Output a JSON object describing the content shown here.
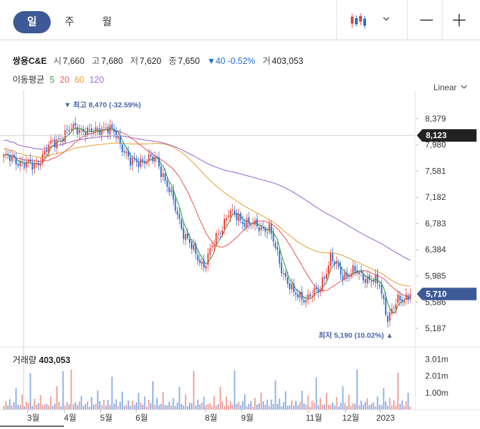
{
  "tabs": [
    {
      "label": "일",
      "active": true
    },
    {
      "label": "주",
      "active": false
    },
    {
      "label": "월",
      "active": false
    }
  ],
  "toolbar": {
    "chart_type_icon": "candlestick-icon",
    "dropdown_icon": "chevron-down-icon",
    "zoom_out_icon": "minus-icon",
    "zoom_in_icon": "plus-icon"
  },
  "stock": {
    "name": "쌍용C&E",
    "open_label": "시",
    "open": "7,660",
    "high_label": "고",
    "high": "7,680",
    "low_label": "저",
    "low": "7,620",
    "close_label": "종",
    "close": "7,650",
    "change": "▼40",
    "change_pct": "-0.52%",
    "volume_label": "거",
    "volume": "403,053"
  },
  "moving_average": {
    "label": "이동평균",
    "periods": [
      {
        "value": "5",
        "color": "#36a33b"
      },
      {
        "value": "20",
        "color": "#ef5b5b"
      },
      {
        "value": "60",
        "color": "#e8a33c"
      },
      {
        "value": "120",
        "color": "#9b6bd6"
      }
    ]
  },
  "scale_mode": "Linear",
  "volume_panel": {
    "label": "거래량",
    "value": "403,053"
  },
  "colors": {
    "up": "#e8453c",
    "down": "#2c6fd1",
    "accent": "#3e5a96",
    "crosshair_tag": "#222222",
    "last_tag": "#3e5a96"
  },
  "chart_data": {
    "type": "candlestick",
    "y_ticks": [
      "8,379",
      "7,980",
      "7,581",
      "7,182",
      "6,783",
      "6,384",
      "5,985",
      "5,586",
      "5,187"
    ],
    "y_tick_values": [
      8379,
      7980,
      7581,
      7182,
      6783,
      6384,
      5985,
      5586,
      5187
    ],
    "ylim": [
      5050,
      8600
    ],
    "x_labels": [
      "3월",
      "4월",
      "5월",
      "6월",
      "8월",
      "9월",
      "11월",
      "12월",
      "2023"
    ],
    "crosshair_price": "8,123",
    "crosshair_value": 8123,
    "last_price": "5,710",
    "last_value": 5710,
    "high_annotation": "▼ 최고 8,470 (-32.59%)",
    "high_value": 8470,
    "low_annotation": "최저 5,190 (10.02%) ▲",
    "low_value": 5190,
    "volume_ticks": [
      "3.01m",
      "2.01m",
      "1.00m"
    ],
    "volume_tick_values": [
      3.01,
      2.01,
      1.0
    ],
    "close_path": [
      {
        "i": 0,
        "v": 7800
      },
      {
        "i": 10,
        "v": 7700
      },
      {
        "i": 15,
        "v": 7650
      },
      {
        "i": 22,
        "v": 7950
      },
      {
        "i": 30,
        "v": 8150
      },
      {
        "i": 35,
        "v": 8250
      },
      {
        "i": 42,
        "v": 8150
      },
      {
        "i": 48,
        "v": 8250
      },
      {
        "i": 55,
        "v": 8150
      },
      {
        "i": 62,
        "v": 7700
      },
      {
        "i": 68,
        "v": 7750
      },
      {
        "i": 75,
        "v": 7760
      },
      {
        "i": 82,
        "v": 7200
      },
      {
        "i": 88,
        "v": 6650
      },
      {
        "i": 94,
        "v": 6300
      },
      {
        "i": 98,
        "v": 6150
      },
      {
        "i": 104,
        "v": 6550
      },
      {
        "i": 110,
        "v": 6950
      },
      {
        "i": 116,
        "v": 6850
      },
      {
        "i": 122,
        "v": 6750
      },
      {
        "i": 130,
        "v": 6700
      },
      {
        "i": 136,
        "v": 6100
      },
      {
        "i": 142,
        "v": 5700
      },
      {
        "i": 148,
        "v": 5650
      },
      {
        "i": 154,
        "v": 5750
      },
      {
        "i": 160,
        "v": 6250
      },
      {
        "i": 166,
        "v": 6000
      },
      {
        "i": 172,
        "v": 6050
      },
      {
        "i": 178,
        "v": 5950
      },
      {
        "i": 184,
        "v": 5850
      },
      {
        "i": 188,
        "v": 5350
      },
      {
        "i": 193,
        "v": 5600
      },
      {
        "i": 199,
        "v": 5710
      }
    ],
    "volume_pattern": [
      0.35,
      0.55,
      0.25,
      0.8,
      0.3,
      0.45,
      1.4,
      0.5,
      0.3,
      0.9,
      0.25,
      0.6,
      0.4,
      2.4,
      0.35,
      0.7,
      0.3,
      0.5,
      1.1,
      0.28
    ]
  }
}
